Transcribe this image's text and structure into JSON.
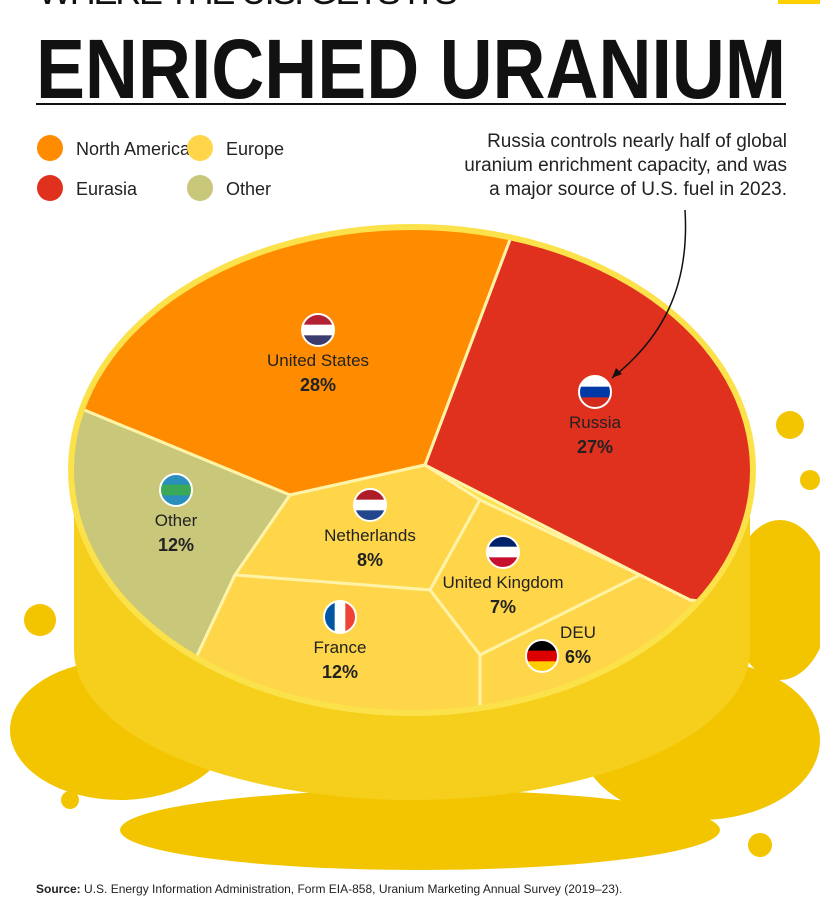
{
  "chart_data": {
    "type": "voronoi",
    "supertitle": "WHERE THE U.S. GETS ITS",
    "title": "ENRICHED URANIUM",
    "legend": [
      {
        "name": "North America",
        "color": "#ff8c00"
      },
      {
        "name": "Europe",
        "color": "#ffd54a"
      },
      {
        "name": "Eurasia",
        "color": "#e0301e"
      },
      {
        "name": "Other",
        "color": "#c9c77a"
      }
    ],
    "annotation": [
      "Russia controls nearly half of global",
      "uranium enrichment capacity, and was",
      "a major source of U.S. fuel in 2023."
    ],
    "categories": [
      "United States",
      "Russia",
      "Other",
      "Netherlands",
      "United Kingdom",
      "France",
      "DEU"
    ],
    "values": [
      28,
      27,
      12,
      8,
      7,
      12,
      6
    ],
    "value_labels": [
      "28%",
      "27%",
      "12%",
      "8%",
      "7%",
      "12%",
      "6%"
    ],
    "colors": [
      "#ff8c00",
      "#e0301e",
      "#c9c77a",
      "#ffd54a",
      "#ffd54a",
      "#ffd54a",
      "#ffd54a"
    ],
    "source_label": "Source:",
    "source": "U.S. Energy Information Administration, Form EIA-858, Uranium Marketing Annual Survey (2019–23)."
  }
}
